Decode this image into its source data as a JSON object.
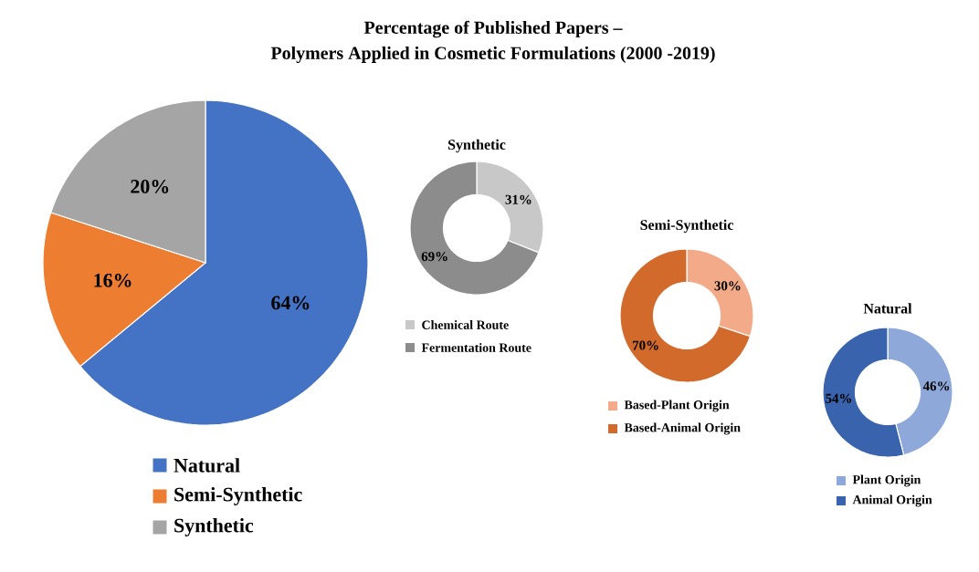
{
  "chart_data": [
    {
      "type": "pie",
      "title": "Percentage of Published Papers –",
      "subtitle": "Polymers Applied in Cosmetic Formulations (2000 -2019)",
      "categories": [
        "Natural",
        "Semi-Synthetic",
        "Synthetic"
      ],
      "values": [
        64,
        16,
        20
      ],
      "colors": [
        "#4472c4",
        "#ed7d31",
        "#a5a5a5"
      ],
      "value_labels": [
        "64%",
        "16%",
        "20%"
      ],
      "legend": "bottom"
    },
    {
      "type": "donut",
      "title": "Synthetic",
      "categories": [
        "Chemical Route",
        "Fermentation Route"
      ],
      "values": [
        31,
        69
      ],
      "colors": [
        "#c8c8c8",
        "#8c8c8c"
      ],
      "value_labels": [
        "31%",
        "69%"
      ],
      "legend": "bottom"
    },
    {
      "type": "donut",
      "title": "Semi-Synthetic",
      "categories": [
        "Based-Plant Origin",
        "Based-Animal Origin"
      ],
      "values": [
        30,
        70
      ],
      "colors": [
        "#f2aa88",
        "#d26a2b"
      ],
      "value_labels": [
        "30%",
        "70%"
      ],
      "legend": "bottom"
    },
    {
      "type": "donut",
      "title": "Natural",
      "categories": [
        "Plant Origin",
        "Animal Origin"
      ],
      "values": [
        46,
        54
      ],
      "colors": [
        "#8fa8da",
        "#3a63ad"
      ],
      "value_labels": [
        "46%",
        "54%"
      ],
      "legend": "bottom"
    }
  ]
}
